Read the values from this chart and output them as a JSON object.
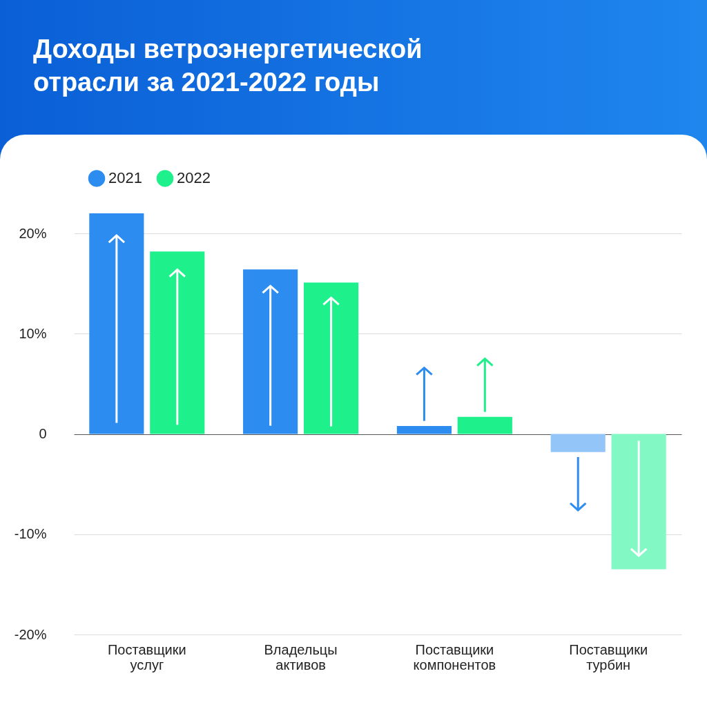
{
  "chart_data": {
    "type": "bar",
    "title": "Доходы ветроэнергетической отрасли за 2021-2022 годы",
    "categories": [
      "Поставщики услуг",
      "Владельцы активов",
      "Поставщики компонентов",
      "Поставщики турбин"
    ],
    "series": [
      {
        "name": "2021",
        "color": "#2d8cf0",
        "colors": [
          "#2d8cf0",
          "#2d8cf0",
          "#2d8cf0",
          "#93c5f8"
        ],
        "values": [
          22.0,
          16.4,
          0.8,
          -1.8
        ]
      },
      {
        "name": "2022",
        "color": "#1ef08c",
        "colors": [
          "#1ef08c",
          "#1ef08c",
          "#1ef08c",
          "#82f8c4"
        ],
        "values": [
          18.2,
          15.1,
          1.7,
          -13.5
        ]
      }
    ],
    "ylim": [
      -20,
      22
    ],
    "yticks": [
      {
        "value": 20,
        "label": "20%"
      },
      {
        "value": 10,
        "label": "10%"
      },
      0,
      {
        "value": -10,
        "label": "-10%"
      },
      {
        "value": -20,
        "label": "-20%"
      }
    ],
    "grid": "y",
    "legend": "top"
  }
}
